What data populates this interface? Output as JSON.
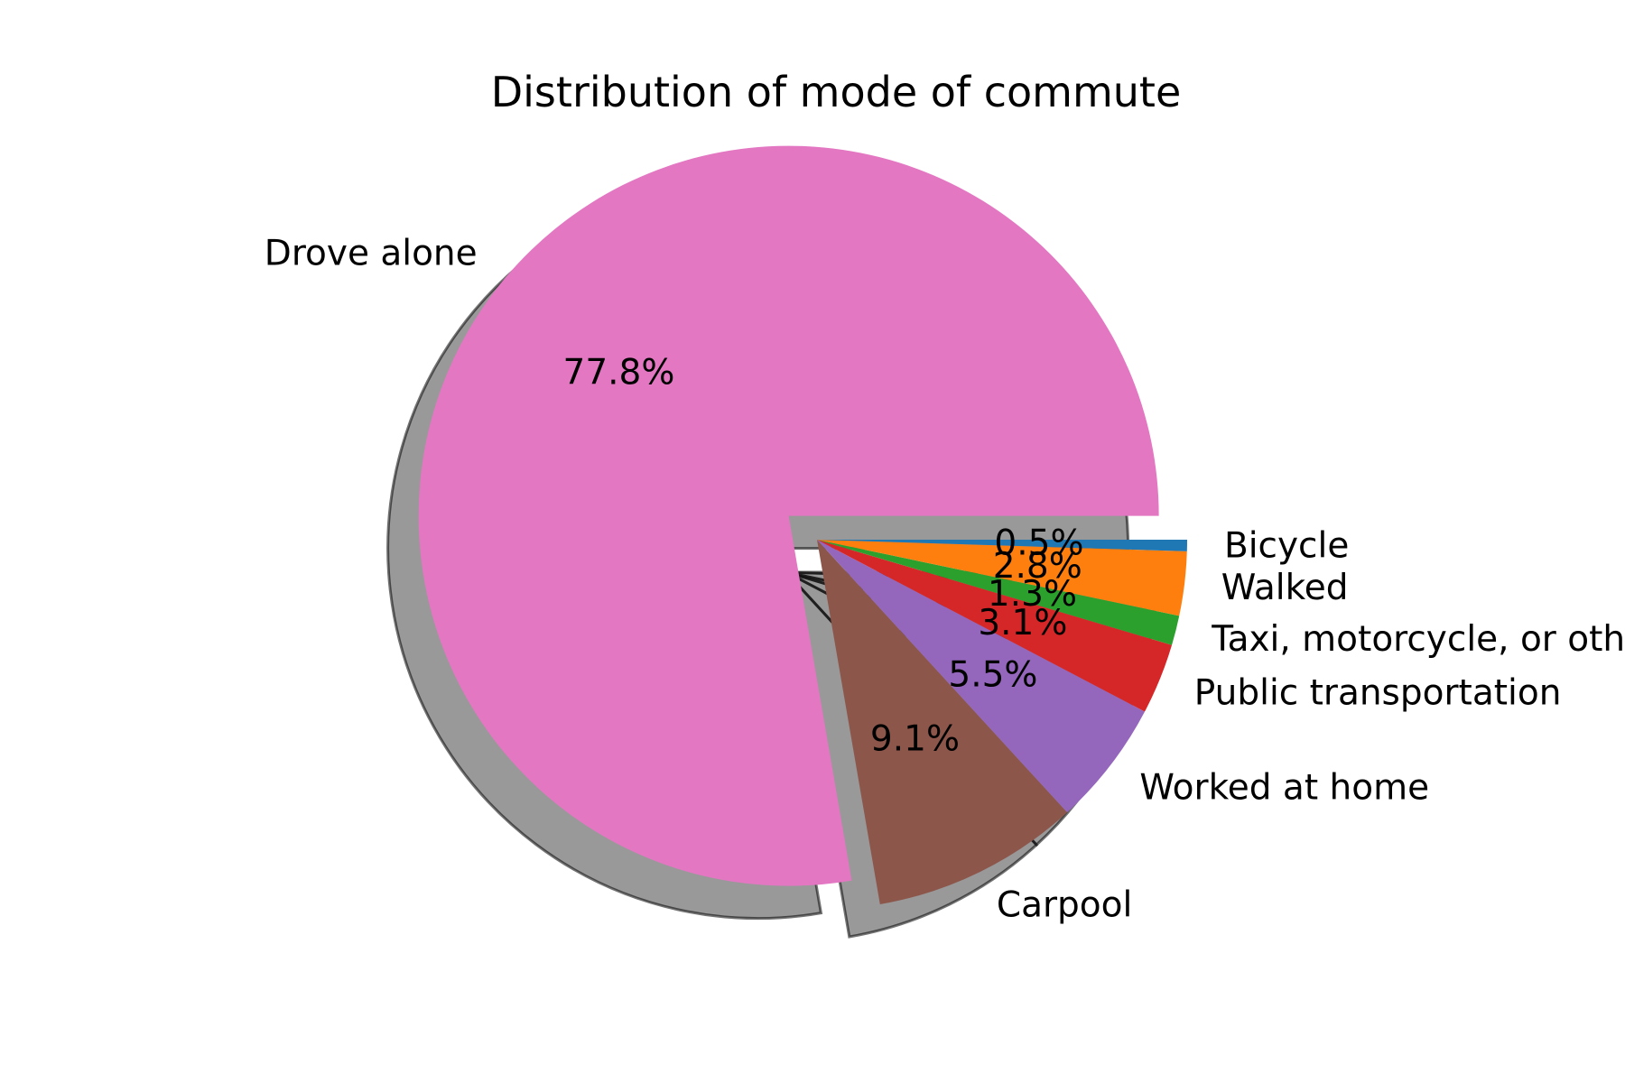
{
  "chart_data": {
    "type": "pie",
    "title": "Distribution of mode of commute",
    "categories": [
      "Drove alone",
      "Carpool",
      "Worked at home",
      "Public transportation",
      "Taxi, motorcycle, or other",
      "Walked",
      "Bicycle"
    ],
    "values": [
      77.8,
      9.1,
      5.5,
      3.1,
      1.3,
      2.8,
      0.5
    ],
    "value_labels": [
      "77.8%",
      "9.1%",
      "5.5%",
      "3.1%",
      "1.3%",
      "2.8%",
      "0.5%"
    ],
    "colors": [
      "#e377c2",
      "#8c564b",
      "#9467bd",
      "#d62728",
      "#2ca02c",
      "#ff7f0e",
      "#1f77b4"
    ],
    "start_angle_deg": 0,
    "direction": "counterclockwise",
    "exploded_slice": "Drove alone",
    "shadow": true,
    "legend": "none"
  }
}
